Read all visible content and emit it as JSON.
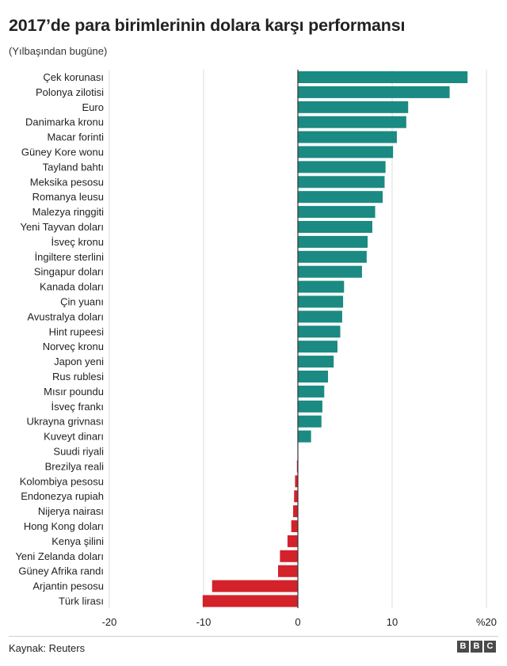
{
  "header": {
    "title": "2017’de para birimlerinin dolara karşı performansı",
    "subtitle": "(Yılbaşından bugüne)"
  },
  "footer": {
    "source": "Kaynak: Reuters",
    "logo_letters": [
      "B",
      "B",
      "C"
    ]
  },
  "colors": {
    "positive": "#1a8a82",
    "negative": "#d3222a",
    "grid": "#dddddd",
    "zero_line": "#333333"
  },
  "chart_data": {
    "type": "bar",
    "orientation": "horizontal",
    "title": "2017’de para birimlerinin dolara karşı performansı",
    "subtitle": "(Yılbaşından bugüne)",
    "xlim": [
      -20,
      20
    ],
    "x_ticks": [
      {
        "value": -20,
        "label": "-20"
      },
      {
        "value": -10,
        "label": "-10"
      },
      {
        "value": 0,
        "label": "0"
      },
      {
        "value": 10,
        "label": "10"
      },
      {
        "value": 20,
        "label": "%20"
      }
    ],
    "grid": true,
    "categories": [
      "Çek korunası",
      "Polonya zilotisi",
      "Euro",
      "Danimarka kronu",
      "Macar forinti",
      "Güney Kore wonu",
      "Tayland bahtı",
      "Meksika pesosu",
      "Romanya leusu",
      "Malezya ringgiti",
      "Yeni Tayvan doları",
      "İsveç kronu",
      "İngiltere sterlini",
      "Singapur doları",
      "Kanada doları",
      "Çin yuanı",
      "Avustralya doları",
      "Hint rupeesi",
      "Norveç kronu",
      "Japon yeni",
      "Rus rublesi",
      "Mısır poundu",
      "İsveç frankı",
      "Ukrayna grivnası",
      "Kuveyt dinarı",
      "Suudi riyali",
      "Brezilya reali",
      "Kolombiya pesosu",
      "Endonezya rupiah",
      "Nijerya nairası",
      "Hong Kong doları",
      "Kenya şilini",
      "Yeni Zelanda doları",
      "Güney Afrika randı",
      "Arjantin pesosu",
      "Türk lirası"
    ],
    "values": [
      18.0,
      16.1,
      11.7,
      11.5,
      10.5,
      10.1,
      9.3,
      9.2,
      9.0,
      8.2,
      7.9,
      7.4,
      7.3,
      6.8,
      4.9,
      4.8,
      4.7,
      4.5,
      4.2,
      3.8,
      3.2,
      2.8,
      2.6,
      2.5,
      1.4,
      0.0,
      -0.1,
      -0.3,
      -0.4,
      -0.5,
      -0.7,
      -1.1,
      -1.9,
      -2.1,
      -9.1,
      -10.1
    ]
  }
}
